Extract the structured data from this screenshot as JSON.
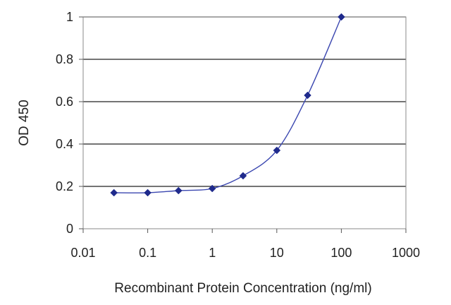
{
  "chart_data": {
    "type": "scatter",
    "title": "",
    "xlabel": "Recombinant Protein Concentration (ng/ml)",
    "ylabel": "OD 450",
    "x_scale": "log",
    "xlim": [
      0.01,
      1000
    ],
    "ylim": [
      0,
      1
    ],
    "x_ticks": [
      0.01,
      0.1,
      1,
      10,
      100,
      1000
    ],
    "x_tick_labels": [
      "0.01",
      "0.1",
      "1",
      "10",
      "100",
      "1000"
    ],
    "y_ticks": [
      0,
      0.2,
      0.4,
      0.6,
      0.8,
      1
    ],
    "y_tick_labels": [
      "0",
      "0.2",
      "0.4",
      "0.6",
      "0.8",
      "1"
    ],
    "grid": "horizontal",
    "legend": "none",
    "series": [
      {
        "x": [
          0.03,
          0.1,
          0.3,
          1,
          3,
          10,
          30,
          100
        ],
        "y": [
          0.17,
          0.17,
          0.18,
          0.19,
          0.25,
          0.37,
          0.63,
          1.0
        ],
        "marker": "diamond",
        "fit_line": true,
        "color": "#1f2a8c"
      }
    ]
  }
}
